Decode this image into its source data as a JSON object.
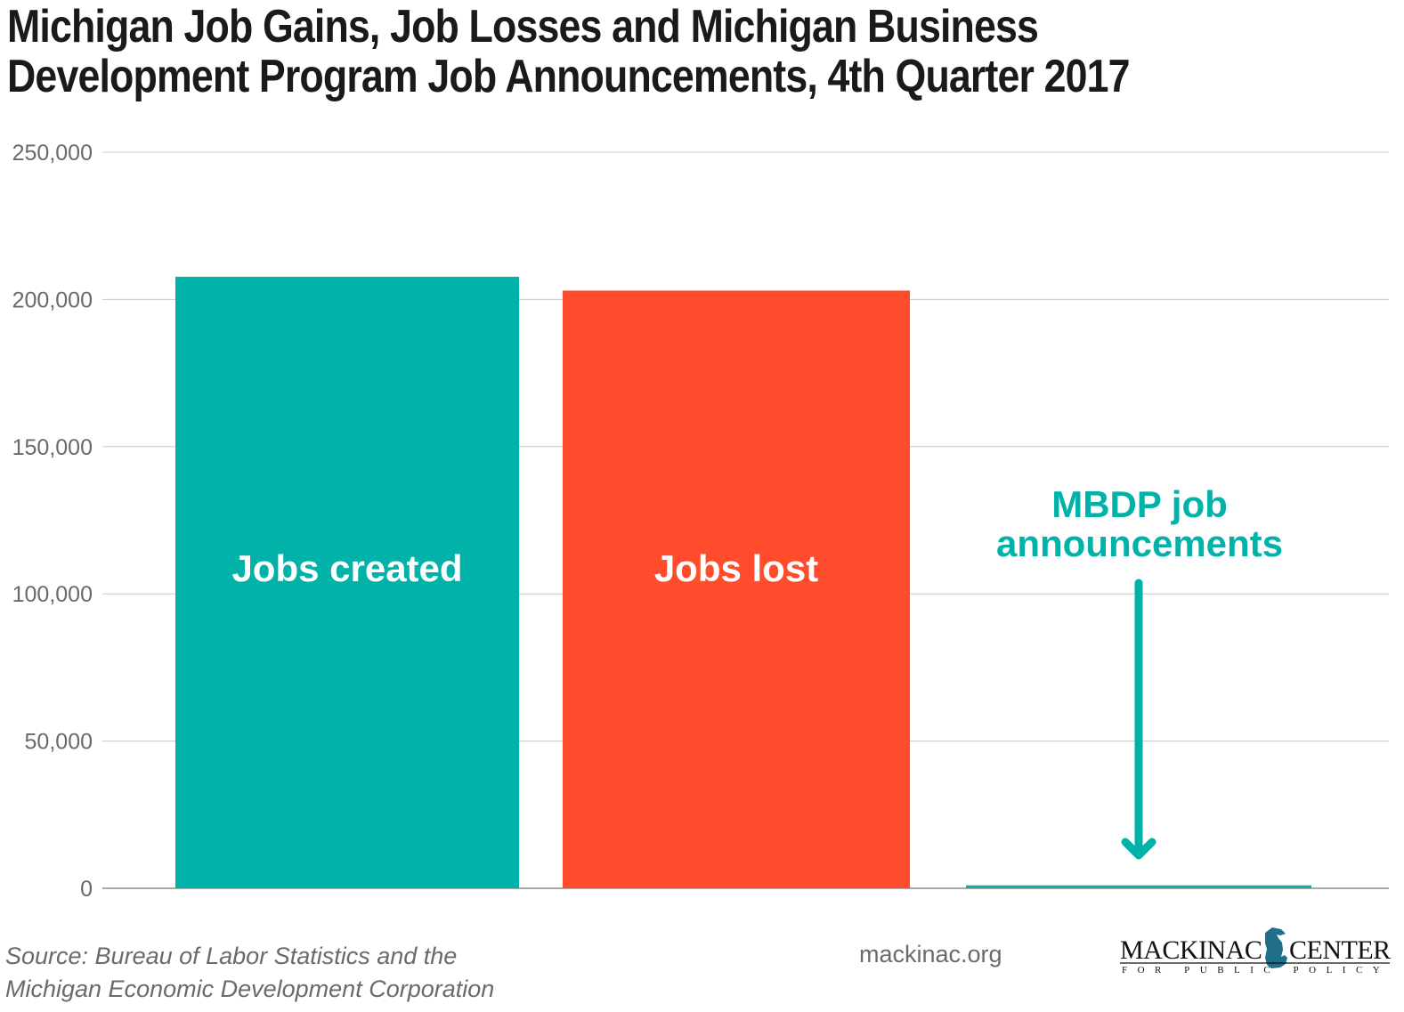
{
  "title_line1": "Michigan Job Gains, Job Losses and Michigan Business",
  "title_line2": "Development Program Job Announcements, 4th Quarter 2017",
  "chart_data": {
    "type": "bar",
    "title": "Michigan Job Gains, Job Losses and Michigan Business Development Program Job Announcements, 4th Quarter 2017",
    "categories": [
      "Jobs created",
      "Jobs lost",
      "MBDP job announcements"
    ],
    "values": [
      207700,
      203000,
      1000
    ],
    "colors": [
      "#00b2a7",
      "#ff4c2c",
      "#1aa79c"
    ],
    "ylim": [
      0,
      250000
    ],
    "yticks": [
      0,
      50000,
      100000,
      150000,
      200000,
      250000
    ],
    "ytick_labels": [
      "0",
      "50,000",
      "100,000",
      "150,000",
      "200,000",
      "250,000"
    ],
    "grid": true,
    "annotation": {
      "line1": "MBDP job",
      "line2": "announcements",
      "arrow": "down",
      "color": "#00b2a7"
    }
  },
  "footer": {
    "source_line1": "Source: Bureau of Labor Statistics and the",
    "source_line2": "Michigan Economic Development Corporation",
    "site": "mackinac.org",
    "logo_text": "MACKINAC CENTER FOR PUBLIC POLICY"
  }
}
